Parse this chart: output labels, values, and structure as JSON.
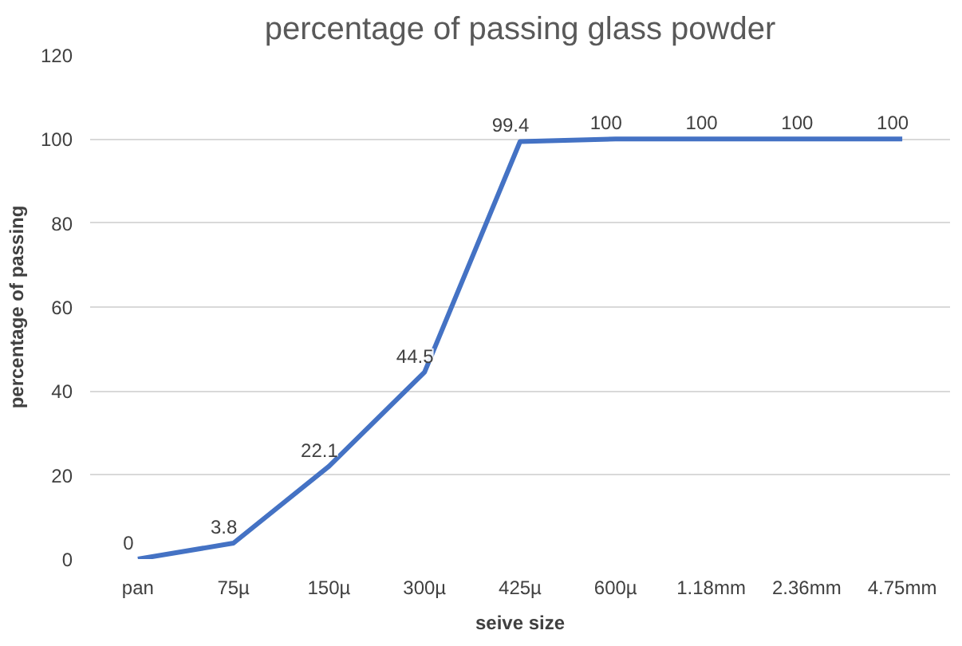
{
  "chart_data": {
    "type": "line",
    "title": "percentage of passing glass powder",
    "xlabel": "seive size",
    "ylabel": "percentage of passing",
    "categories": [
      "pan",
      "75µ",
      "150µ",
      "300µ",
      "425µ",
      "600µ",
      "1.18mm",
      "2.36mm",
      "4.75mm"
    ],
    "values": [
      0,
      3.8,
      22.1,
      44.5,
      99.4,
      100,
      100,
      100,
      100
    ],
    "color": "#4472c4",
    "ylim": [
      0,
      120
    ],
    "yticks": [
      0,
      20,
      40,
      60,
      80,
      100,
      120
    ],
    "grid": "y",
    "data_labels": true,
    "marker": "none",
    "line_style": "solid"
  }
}
